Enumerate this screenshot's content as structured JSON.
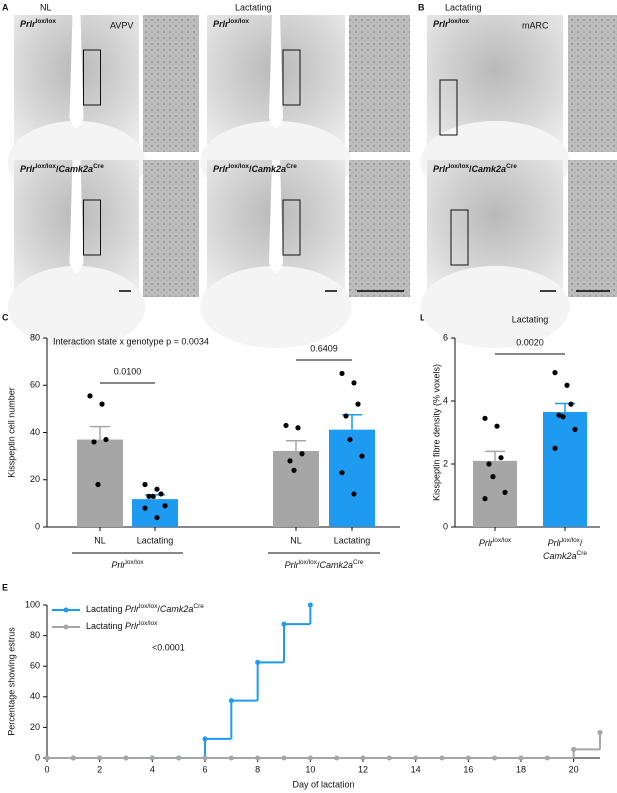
{
  "panel_labels": [
    "A",
    "B",
    "C",
    "D",
    "E"
  ],
  "micrographs": {
    "A": {
      "columns": [
        "NL",
        "Lactating"
      ],
      "region": "AVPV",
      "rows": [
        {
          "base": "Prlr",
          "sup": "lox/lox"
        },
        {
          "base": "Prlr",
          "sup": "lox/lox",
          "sep": "/",
          "base2": "Camk2a",
          "sup2": "Cre"
        }
      ]
    },
    "B": {
      "column": "Lactating",
      "region": "mARC",
      "rows": [
        {
          "base": "Prlr",
          "sup": "lox/lox"
        },
        {
          "base": "Prlr",
          "sup": "lox/lox",
          "sep": "/",
          "base2": "Camk2a",
          "sup2": "Cre"
        }
      ]
    }
  },
  "chart_data": [
    {
      "type": "bar",
      "ylabel": "Kisspeptin cell number",
      "annotations": [
        "Interaction state x genotype p = 0.0034",
        "0.0100",
        "0.6409"
      ],
      "categories": [
        "NL",
        "Lactating",
        "NL",
        "Lactating"
      ],
      "groups": [
        {
          "base": "Prlr",
          "sup": "lox/lox"
        },
        {
          "base": "Prlr",
          "sup": "lox/lox",
          "sep": "/",
          "base2": "Camk2a",
          "sup2": "Cre"
        }
      ],
      "colors": [
        "#a6a6a6",
        "#1e9bf0",
        "#a6a6a6",
        "#1e9bf0"
      ],
      "values": [
        37,
        11.8,
        32.2,
        41.2
      ],
      "errors": [
        5.5,
        1.8,
        4.3,
        6.3
      ],
      "points": [
        [
          55.5,
          52,
          37,
          36,
          18
        ],
        [
          18,
          16,
          14,
          13,
          13,
          9,
          8,
          4
        ],
        [
          43,
          42,
          31,
          28,
          24
        ],
        [
          65,
          61,
          52,
          47,
          37,
          30,
          23,
          14
        ]
      ],
      "ylim": [
        0,
        80
      ],
      "yticks": [
        0,
        20,
        40,
        60,
        80
      ]
    },
    {
      "type": "bar",
      "title": "Lactating",
      "ylabel": "Kisspeptin fibre density (% voxels)",
      "annotations": [
        "0.0020"
      ],
      "categories": [
        {
          "base": "Prlr",
          "sup": "lox/lox"
        },
        {
          "base": "Prlr",
          "sup": "lox/lox",
          "sep": "/",
          "base2": "Camk2a",
          "sup2": "Cre"
        }
      ],
      "colors": [
        "#a6a6a6",
        "#1e9bf0"
      ],
      "values": [
        2.1,
        3.65
      ],
      "errors": [
        0.3,
        0.27
      ],
      "points": [
        [
          3.45,
          3.2,
          2.2,
          2.0,
          1.6,
          1.1,
          0.9
        ],
        [
          4.9,
          4.5,
          3.9,
          3.55,
          3.5,
          3.1,
          2.5
        ]
      ],
      "ylim": [
        0,
        6
      ],
      "yticks": [
        0,
        2,
        4,
        6
      ]
    },
    {
      "type": "line",
      "xlabel": "Day of lactation",
      "ylabel": "Percentage showing estrus",
      "annotations": [
        "<0.0001"
      ],
      "series": [
        {
          "name": "Lactating",
          "genotype": {
            "base": "Prlr",
            "sup": "lox/lox",
            "sep": "/",
            "base2": "Camk2a",
            "sup2": "Cre"
          },
          "color": "#1e9bf0",
          "x": [
            0,
            1,
            2,
            3,
            4,
            5,
            6,
            7,
            8,
            9,
            10
          ],
          "values": [
            0,
            0,
            0,
            0,
            0,
            0,
            12.5,
            37.5,
            62.5,
            87.5,
            100
          ]
        },
        {
          "name": "Lactating",
          "genotype": {
            "base": "Prlr",
            "sup": "lox/lox"
          },
          "color": "#a6a6a6",
          "x": [
            0,
            1,
            2,
            3,
            4,
            5,
            6,
            7,
            8,
            9,
            10,
            11,
            12,
            13,
            14,
            15,
            16,
            17,
            18,
            19,
            20,
            21
          ],
          "values": [
            0,
            0,
            0,
            0,
            0,
            0,
            0,
            0,
            0,
            0,
            0,
            0,
            0,
            0,
            0,
            0,
            0,
            0,
            0,
            0,
            5.6,
            16.7
          ]
        }
      ],
      "xlim": [
        0,
        21
      ],
      "xticks": [
        0,
        2,
        4,
        6,
        8,
        10,
        12,
        14,
        16,
        18,
        20
      ],
      "ylim": [
        0,
        100
      ],
      "yticks": [
        0,
        20,
        40,
        60,
        80,
        100
      ]
    }
  ]
}
